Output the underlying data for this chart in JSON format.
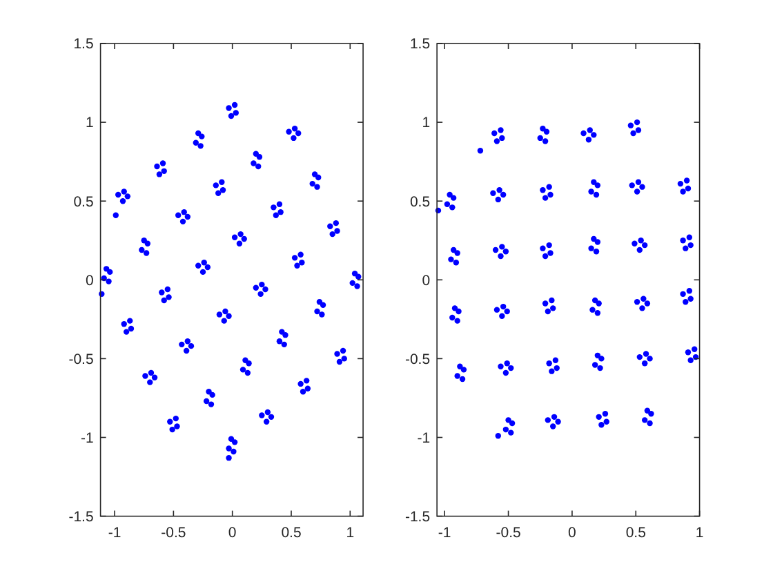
{
  "chart_data": [
    {
      "type": "scatter",
      "color": "#0000ff",
      "marker": "circle",
      "xlim": [
        -1.12,
        1.11
      ],
      "ylim": [
        -1.5,
        1.5
      ],
      "xticks": [
        -1,
        -0.5,
        0,
        0.5,
        1
      ],
      "yticks": [
        -1.5,
        -1,
        -0.5,
        0,
        0.5,
        1,
        1.5
      ],
      "x": [
        -0.03,
        0.02,
        0.03,
        -0.01,
        -0.31,
        -0.26,
        -0.29,
        -0.27,
        0.48,
        0.53,
        0.56,
        0.52,
        -0.64,
        -0.59,
        -0.58,
        -0.62,
        0.18,
        0.23,
        0.2,
        0.22,
        -0.97,
        -0.92,
        -0.89,
        -0.93,
        -0.14,
        -0.09,
        -0.08,
        -0.12,
        0.68,
        0.73,
        0.7,
        0.72,
        -0.46,
        -0.41,
        -0.38,
        -0.42,
        0.35,
        0.4,
        0.41,
        0.37,
        -0.77,
        -0.72,
        -0.75,
        -0.73,
        0.02,
        0.07,
        0.1,
        0.06,
        0.83,
        0.88,
        0.89,
        0.85,
        -1.09,
        -1.04,
        -1.07,
        -1.05,
        -0.29,
        -0.24,
        -0.21,
        -0.25,
        0.53,
        0.58,
        0.59,
        0.55,
        1.02,
        1.07,
        1.04,
        1.06,
        0.2,
        0.25,
        0.28,
        0.24,
        -0.6,
        -0.55,
        -0.54,
        -0.58,
        0.72,
        0.77,
        0.74,
        0.76,
        -0.11,
        -0.06,
        -0.03,
        -0.07,
        -0.92,
        -0.87,
        -0.86,
        -0.9,
        0.4,
        0.45,
        0.42,
        0.44,
        -0.43,
        -0.38,
        -0.35,
        -0.39,
        0.89,
        0.94,
        0.95,
        0.91,
        0.09,
        0.14,
        0.11,
        0.13,
        -0.74,
        -0.69,
        -0.66,
        -0.7,
        0.58,
        0.63,
        0.64,
        0.6,
        -0.22,
        -0.17,
        -0.2,
        -0.18,
        0.25,
        0.3,
        0.33,
        0.29,
        -0.53,
        -0.48,
        -0.47,
        -0.51,
        -0.03,
        0.02,
        -0.01,
        0.01,
        -1.11,
        -0.03,
        -0.99
      ],
      "values": [
        1.09,
        1.11,
        1.06,
        1.04,
        0.87,
        0.91,
        0.93,
        0.85,
        0.94,
        0.96,
        0.93,
        0.9,
        0.72,
        0.74,
        0.69,
        0.67,
        0.74,
        0.78,
        0.8,
        0.72,
        0.54,
        0.56,
        0.53,
        0.5,
        0.6,
        0.62,
        0.57,
        0.55,
        0.61,
        0.65,
        0.67,
        0.59,
        0.41,
        0.43,
        0.4,
        0.37,
        0.46,
        0.48,
        0.43,
        0.41,
        0.19,
        0.23,
        0.25,
        0.17,
        0.27,
        0.29,
        0.26,
        0.23,
        0.34,
        0.36,
        0.31,
        0.29,
        0.01,
        0.05,
        0.07,
        -0.01,
        0.09,
        0.11,
        0.08,
        0.05,
        0.14,
        0.16,
        0.11,
        0.09,
        -0.02,
        0.02,
        0.04,
        -0.04,
        -0.05,
        -0.03,
        -0.06,
        -0.09,
        -0.08,
        -0.06,
        -0.11,
        -0.13,
        -0.2,
        -0.16,
        -0.14,
        -0.22,
        -0.22,
        -0.2,
        -0.23,
        -0.26,
        -0.28,
        -0.26,
        -0.31,
        -0.33,
        -0.39,
        -0.35,
        -0.33,
        -0.41,
        -0.41,
        -0.39,
        -0.42,
        -0.45,
        -0.47,
        -0.45,
        -0.5,
        -0.52,
        -0.57,
        -0.53,
        -0.51,
        -0.59,
        -0.61,
        -0.59,
        -0.62,
        -0.65,
        -0.66,
        -0.64,
        -0.69,
        -0.71,
        -0.77,
        -0.73,
        -0.71,
        -0.79,
        -0.86,
        -0.84,
        -0.87,
        -0.9,
        -0.9,
        -0.88,
        -0.93,
        -0.95,
        -1.07,
        -1.03,
        -1.01,
        -1.09,
        -0.09,
        -1.13,
        0.41
      ]
    },
    {
      "type": "scatter",
      "color": "#0000ff",
      "marker": "circle",
      "xlim": [
        -1.06,
        1.0
      ],
      "ylim": [
        -1.5,
        1.5
      ],
      "xticks": [
        -1,
        -0.5,
        0,
        0.5,
        1
      ],
      "yticks": [
        -1.5,
        -1,
        -0.5,
        0,
        0.5,
        1,
        1.5
      ],
      "x": [
        -0.61,
        -0.56,
        -0.55,
        -0.59,
        -0.25,
        -0.2,
        -0.23,
        -0.21,
        0.09,
        0.14,
        0.17,
        0.13,
        0.46,
        0.51,
        0.52,
        0.48,
        -0.98,
        -0.93,
        -0.96,
        -0.94,
        -0.62,
        -0.57,
        -0.54,
        -0.58,
        -0.23,
        -0.18,
        -0.17,
        -0.21,
        0.15,
        0.2,
        0.17,
        0.19,
        0.47,
        0.52,
        0.55,
        0.51,
        0.85,
        0.9,
        0.91,
        0.87,
        -0.95,
        -0.9,
        -0.93,
        -0.91,
        -0.6,
        -0.55,
        -0.52,
        -0.56,
        -0.23,
        -0.18,
        -0.17,
        -0.21,
        0.15,
        0.2,
        0.17,
        0.19,
        0.49,
        0.54,
        0.57,
        0.53,
        0.87,
        0.92,
        0.93,
        0.89,
        -0.94,
        -0.89,
        -0.92,
        -0.9,
        -0.59,
        -0.54,
        -0.51,
        -0.55,
        -0.21,
        -0.16,
        -0.15,
        -0.19,
        0.16,
        0.21,
        0.18,
        0.2,
        0.51,
        0.56,
        0.59,
        0.55,
        0.87,
        0.92,
        0.93,
        0.89,
        -0.9,
        -0.85,
        -0.88,
        -0.86,
        -0.56,
        -0.51,
        -0.48,
        -0.52,
        -0.18,
        -0.13,
        -0.12,
        -0.16,
        0.18,
        0.23,
        0.2,
        0.22,
        0.53,
        0.58,
        0.61,
        0.57,
        0.91,
        0.96,
        0.97,
        0.93,
        -0.52,
        -0.47,
        -0.5,
        -0.48,
        -0.19,
        -0.14,
        -0.11,
        -0.15,
        0.21,
        0.26,
        0.27,
        0.23,
        0.57,
        0.62,
        0.59,
        0.61,
        -1.05,
        -0.72,
        -0.58
      ],
      "values": [
        0.93,
        0.95,
        0.9,
        0.88,
        0.9,
        0.94,
        0.96,
        0.88,
        0.93,
        0.95,
        0.92,
        0.89,
        0.98,
        1.0,
        0.95,
        0.93,
        0.48,
        0.52,
        0.54,
        0.46,
        0.55,
        0.57,
        0.54,
        0.51,
        0.57,
        0.59,
        0.54,
        0.52,
        0.56,
        0.6,
        0.62,
        0.54,
        0.6,
        0.62,
        0.59,
        0.56,
        0.61,
        0.63,
        0.58,
        0.56,
        0.13,
        0.17,
        0.19,
        0.11,
        0.19,
        0.21,
        0.18,
        0.15,
        0.2,
        0.22,
        0.17,
        0.15,
        0.2,
        0.24,
        0.26,
        0.18,
        0.23,
        0.25,
        0.22,
        0.19,
        0.25,
        0.27,
        0.22,
        0.2,
        -0.24,
        -0.2,
        -0.18,
        -0.26,
        -0.19,
        -0.17,
        -0.2,
        -0.23,
        -0.15,
        -0.13,
        -0.18,
        -0.2,
        -0.19,
        -0.15,
        -0.13,
        -0.21,
        -0.14,
        -0.12,
        -0.15,
        -0.18,
        -0.09,
        -0.07,
        -0.12,
        -0.14,
        -0.61,
        -0.57,
        -0.55,
        -0.63,
        -0.55,
        -0.53,
        -0.56,
        -0.59,
        -0.53,
        -0.51,
        -0.56,
        -0.58,
        -0.54,
        -0.5,
        -0.48,
        -0.56,
        -0.49,
        -0.47,
        -0.5,
        -0.53,
        -0.46,
        -0.44,
        -0.49,
        -0.51,
        -0.95,
        -0.91,
        -0.89,
        -0.97,
        -0.89,
        -0.87,
        -0.9,
        -0.93,
        -0.87,
        -0.85,
        -0.9,
        -0.92,
        -0.89,
        -0.85,
        -0.83,
        -0.91,
        0.44,
        0.82,
        -0.99
      ]
    }
  ]
}
